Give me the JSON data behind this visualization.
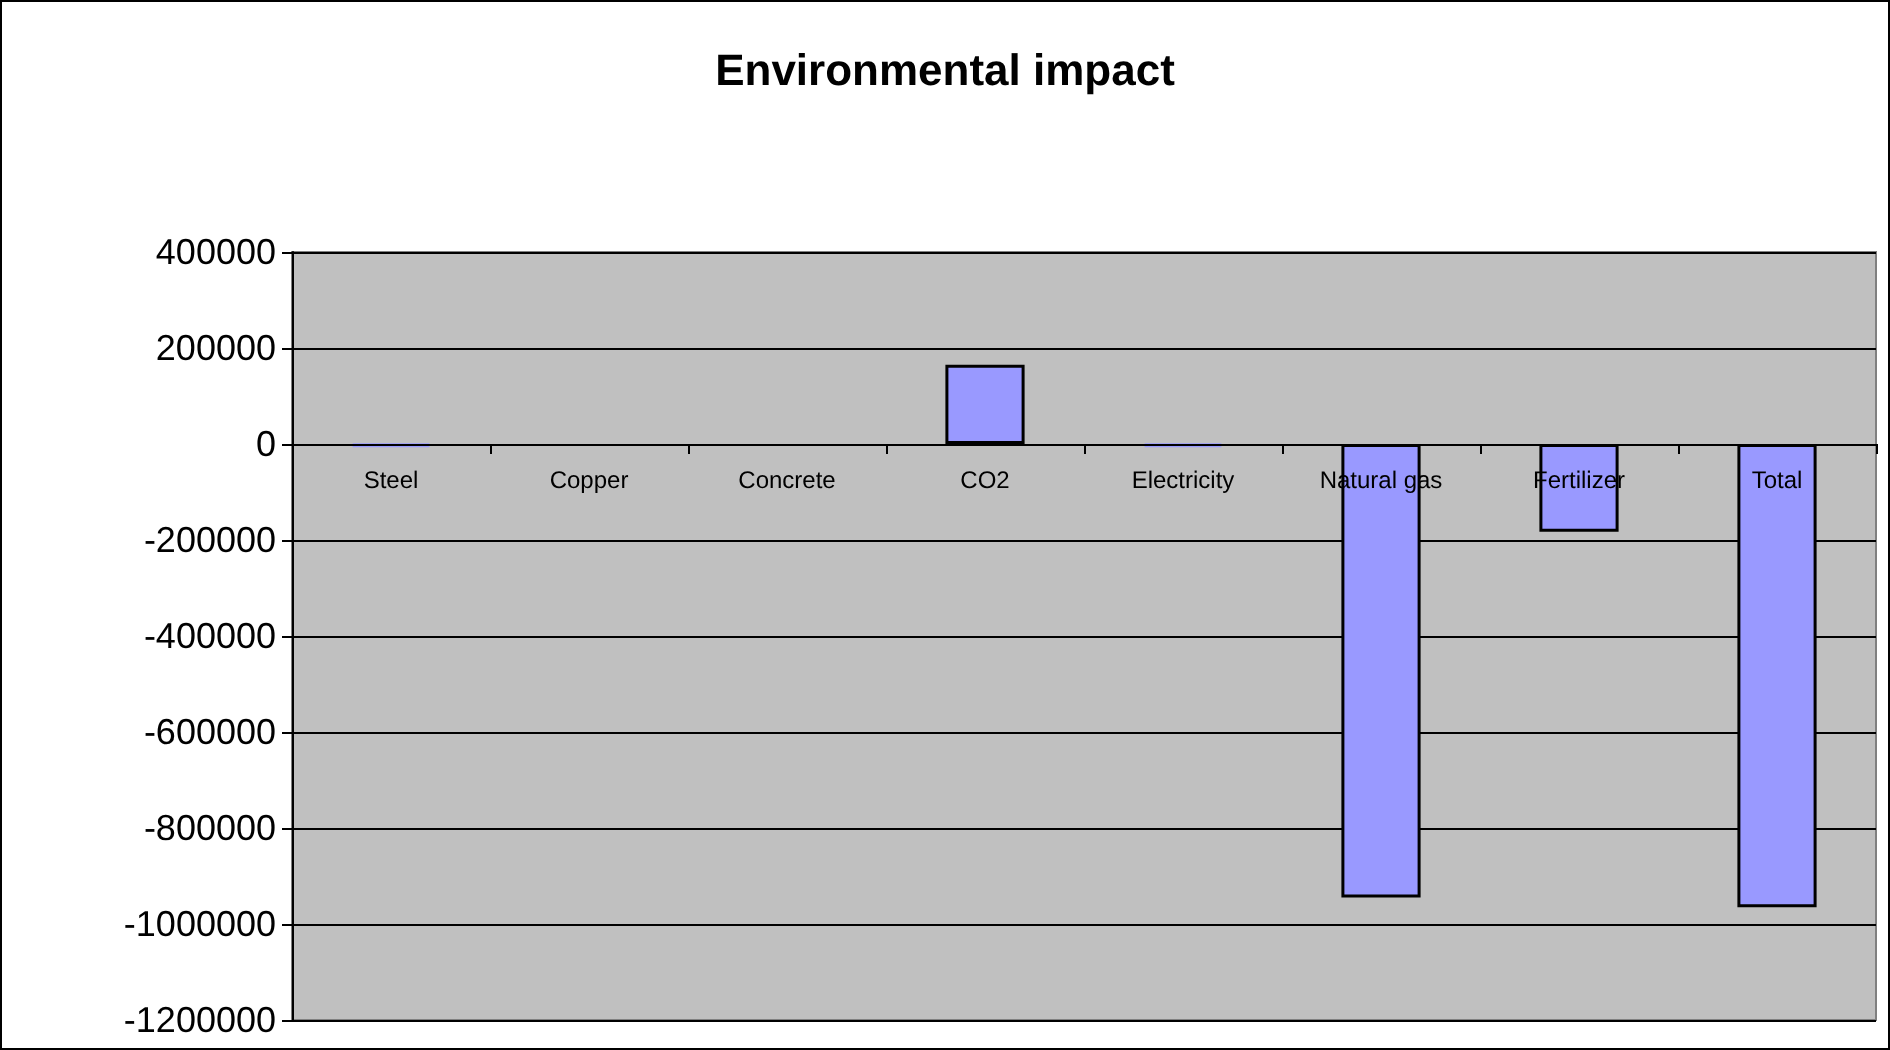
{
  "chart_data": {
    "type": "bar",
    "title": "Environmental impact",
    "categories": [
      "Steel",
      "Copper",
      "Concrete",
      "CO2",
      "Electricity",
      "Natural gas",
      "Fertilizer",
      "Total"
    ],
    "values": [
      -5000,
      0,
      0,
      165000,
      -5000,
      -945000,
      -183000,
      -965000
    ],
    "color": "#9999ff",
    "ylim": [
      -1200000,
      400000
    ],
    "yticks": [
      -1200000,
      -1000000,
      -800000,
      -600000,
      -400000,
      -200000,
      0,
      200000,
      400000
    ],
    "grid": "y"
  }
}
